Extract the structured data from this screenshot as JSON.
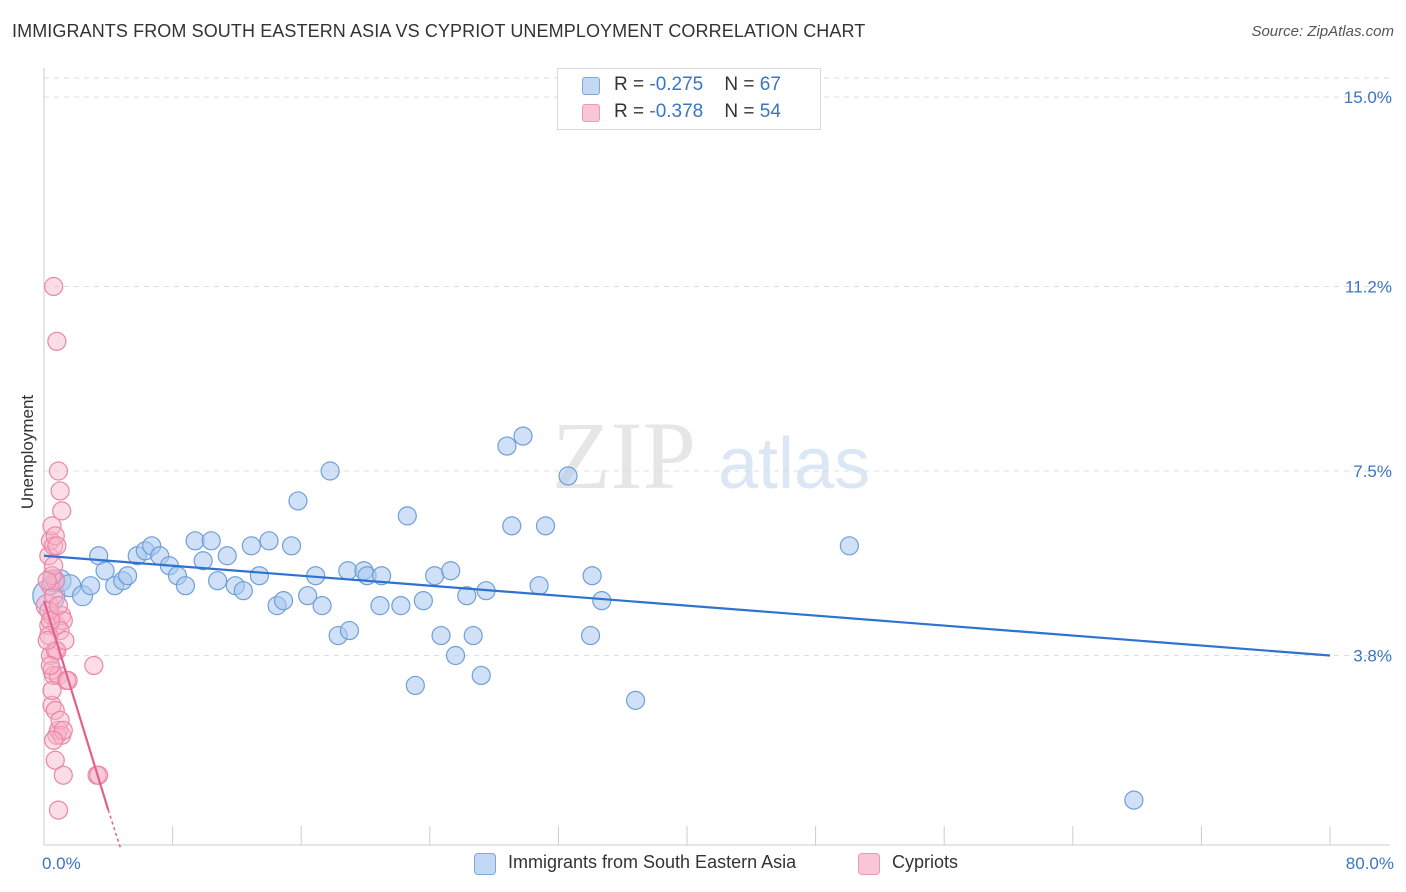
{
  "title": "IMMIGRANTS FROM SOUTH EASTERN ASIA VS CYPRIOT UNEMPLOYMENT CORRELATION CHART",
  "source": "Source: ZipAtlas.com",
  "watermark": {
    "zip": "ZIP",
    "atlas": "atlas"
  },
  "legend_top": [
    {
      "r_label": "R = ",
      "r_value": "-0.275",
      "n_label": "N = ",
      "n_value": "67"
    },
    {
      "r_label": "R = ",
      "r_value": "-0.378",
      "n_label": "N = ",
      "n_value": "54"
    }
  ],
  "legend_bottom": [
    {
      "label": "Immigrants from South Eastern Asia"
    },
    {
      "label": "Cypriots"
    }
  ],
  "colors": {
    "blue_fill": "#a9c8f0",
    "blue_stroke": "#6f9fd8",
    "blue_line": "#2f73d0",
    "pink_fill": "#f6b3c8",
    "pink_stroke": "#ec86a6",
    "pink_line": "#e0608f",
    "tick_label": "#3a75c4",
    "grid": "#dddddd"
  },
  "chart_data": {
    "type": "scatter",
    "title": "IMMIGRANTS FROM SOUTH EASTERN ASIA VS CYPRIOT UNEMPLOYMENT CORRELATION CHART",
    "xlabel": "",
    "ylabel": "Unemployment",
    "xlim": [
      0,
      80
    ],
    "ylim": [
      0,
      15.5
    ],
    "x_tick_labels": [
      {
        "value": 0,
        "label": "0.0%"
      },
      {
        "value": 80,
        "label": "80.0%"
      }
    ],
    "y_tick_labels": [
      {
        "value": 3.8,
        "label": "3.8%"
      },
      {
        "value": 7.5,
        "label": "7.5%"
      },
      {
        "value": 11.2,
        "label": "11.2%"
      },
      {
        "value": 15.0,
        "label": "15.0%"
      }
    ],
    "grid": "horizontal dashed",
    "legend_position": "top-center",
    "series": [
      {
        "name": "Immigrants from South Eastern Asia",
        "color": "blue",
        "trend": {
          "x": [
            0,
            80
          ],
          "y": [
            5.8,
            3.8
          ]
        },
        "points": [
          [
            0.3,
            5.0,
            16
          ],
          [
            0.6,
            5.3,
            11
          ],
          [
            1.0,
            5.3,
            11
          ],
          [
            1.6,
            5.2,
            11
          ],
          [
            2.4,
            5.0,
            10
          ],
          [
            2.9,
            5.2,
            9
          ],
          [
            3.4,
            5.8,
            9
          ],
          [
            3.8,
            5.5,
            9
          ],
          [
            4.4,
            5.2,
            9
          ],
          [
            4.9,
            5.3,
            9
          ],
          [
            5.2,
            5.4,
            9
          ],
          [
            5.8,
            5.8,
            9
          ],
          [
            6.3,
            5.9,
            9
          ],
          [
            6.7,
            6.0,
            9
          ],
          [
            7.2,
            5.8,
            9
          ],
          [
            7.8,
            5.6,
            9
          ],
          [
            8.3,
            5.4,
            9
          ],
          [
            8.8,
            5.2,
            9
          ],
          [
            9.4,
            6.1,
            9
          ],
          [
            9.9,
            5.7,
            9
          ],
          [
            10.4,
            6.1,
            9
          ],
          [
            10.8,
            5.3,
            9
          ],
          [
            11.4,
            5.8,
            9
          ],
          [
            11.9,
            5.2,
            9
          ],
          [
            12.4,
            5.1,
            9
          ],
          [
            12.9,
            6.0,
            9
          ],
          [
            13.4,
            5.4,
            9
          ],
          [
            14.0,
            6.1,
            9
          ],
          [
            14.5,
            4.8,
            9
          ],
          [
            14.9,
            4.9,
            9
          ],
          [
            15.4,
            6.0,
            9
          ],
          [
            15.8,
            6.9,
            9
          ],
          [
            16.4,
            5.0,
            9
          ],
          [
            16.9,
            5.4,
            9
          ],
          [
            17.3,
            4.8,
            9
          ],
          [
            17.8,
            7.5,
            9
          ],
          [
            18.3,
            4.2,
            9
          ],
          [
            19.0,
            4.3,
            9
          ],
          [
            18.9,
            5.5,
            9
          ],
          [
            19.9,
            5.5,
            9
          ],
          [
            20.1,
            5.4,
            9
          ],
          [
            20.9,
            4.8,
            9
          ],
          [
            21.0,
            5.4,
            9
          ],
          [
            22.2,
            4.8,
            9
          ],
          [
            22.6,
            6.6,
            9
          ],
          [
            23.1,
            3.2,
            9
          ],
          [
            23.6,
            4.9,
            9
          ],
          [
            24.3,
            5.4,
            9
          ],
          [
            24.7,
            4.2,
            9
          ],
          [
            25.3,
            5.5,
            9
          ],
          [
            25.6,
            3.8,
            9
          ],
          [
            26.3,
            5.0,
            9
          ],
          [
            26.7,
            4.2,
            9
          ],
          [
            27.2,
            3.4,
            9
          ],
          [
            27.5,
            5.1,
            9
          ],
          [
            28.8,
            8.0,
            9
          ],
          [
            29.8,
            8.2,
            9
          ],
          [
            29.1,
            6.4,
            9
          ],
          [
            30.8,
            5.2,
            9
          ],
          [
            31.2,
            6.4,
            9
          ],
          [
            32.6,
            7.4,
            9
          ],
          [
            34.1,
            5.4,
            9
          ],
          [
            34.0,
            4.2,
            9
          ],
          [
            34.7,
            4.9,
            9
          ],
          [
            36.8,
            2.9,
            9
          ],
          [
            50.1,
            6.0,
            9
          ],
          [
            67.8,
            0.9,
            9
          ]
        ]
      },
      {
        "name": "Cypriots",
        "color": "pink",
        "trend": {
          "x": [
            0,
            4.0
          ],
          "y": [
            4.9,
            0.7
          ]
        },
        "trend_dashed": {
          "x": [
            4.0,
            4.8
          ],
          "y": [
            0.7,
            -0.1
          ]
        },
        "points": [
          [
            0.2,
            4.8,
            11
          ],
          [
            0.3,
            4.4,
            9
          ],
          [
            0.4,
            5.2,
            9
          ],
          [
            0.5,
            4.6,
            9
          ],
          [
            0.6,
            5.0,
            9
          ],
          [
            0.7,
            5.3,
            9
          ],
          [
            0.8,
            4.4,
            9
          ],
          [
            0.3,
            5.8,
            9
          ],
          [
            0.4,
            6.1,
            9
          ],
          [
            0.5,
            6.4,
            9
          ],
          [
            0.6,
            6.0,
            9
          ],
          [
            0.7,
            6.2,
            9
          ],
          [
            0.8,
            6.0,
            9
          ],
          [
            0.4,
            3.8,
            9
          ],
          [
            0.5,
            3.5,
            9
          ],
          [
            0.6,
            3.4,
            9
          ],
          [
            0.7,
            3.9,
            9
          ],
          [
            0.8,
            3.9,
            9
          ],
          [
            0.9,
            3.4,
            9
          ],
          [
            0.5,
            2.8,
            9
          ],
          [
            0.7,
            2.7,
            9
          ],
          [
            0.8,
            2.2,
            9
          ],
          [
            0.9,
            2.3,
            9
          ],
          [
            1.0,
            2.5,
            9
          ],
          [
            1.1,
            2.2,
            9
          ],
          [
            1.2,
            2.3,
            9
          ],
          [
            0.7,
            1.7,
            9
          ],
          [
            1.2,
            1.4,
            9
          ],
          [
            0.9,
            0.7,
            9
          ],
          [
            0.6,
            11.2,
            9
          ],
          [
            0.8,
            10.1,
            9
          ],
          [
            0.9,
            7.5,
            9
          ],
          [
            1.0,
            7.1,
            9
          ],
          [
            1.1,
            6.7,
            9
          ],
          [
            1.1,
            4.6,
            9
          ],
          [
            1.2,
            4.5,
            9
          ],
          [
            1.0,
            4.3,
            9
          ],
          [
            1.4,
            3.3,
            9
          ],
          [
            1.5,
            3.3,
            9
          ],
          [
            3.1,
            3.6,
            9
          ],
          [
            3.3,
            1.4,
            9
          ],
          [
            3.4,
            1.4,
            9
          ],
          [
            0.3,
            4.7,
            9
          ],
          [
            0.4,
            4.5,
            9
          ],
          [
            0.5,
            5.4,
            9
          ],
          [
            0.6,
            5.6,
            9
          ],
          [
            0.2,
            5.3,
            9
          ],
          [
            0.3,
            4.2,
            9
          ],
          [
            0.4,
            3.6,
            9
          ],
          [
            0.5,
            3.1,
            9
          ],
          [
            0.6,
            2.1,
            9
          ],
          [
            0.9,
            4.8,
            9
          ],
          [
            1.3,
            4.1,
            9
          ],
          [
            0.2,
            4.1,
            9
          ]
        ]
      }
    ]
  }
}
